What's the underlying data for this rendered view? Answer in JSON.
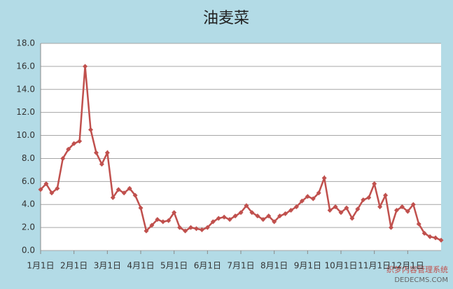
{
  "chart_data": {
    "type": "line",
    "title": "油麦菜",
    "categories": [
      "1月1日",
      null,
      null,
      null,
      null,
      null,
      "2月1日",
      null,
      null,
      null,
      null,
      null,
      "3月1日",
      null,
      null,
      null,
      null,
      null,
      "4月1日",
      null,
      null,
      null,
      null,
      null,
      "5月1日",
      null,
      null,
      null,
      null,
      null,
      "6月1日",
      null,
      null,
      null,
      null,
      null,
      "7月1日",
      null,
      null,
      null,
      null,
      null,
      "8月1日",
      null,
      null,
      null,
      null,
      null,
      "9月1日",
      null,
      null,
      null,
      null,
      null,
      "10月1日",
      null,
      null,
      null,
      null,
      null,
      "11月1日",
      null,
      null,
      null,
      null,
      null,
      "12月1日",
      null,
      null,
      null,
      null,
      null,
      null
    ],
    "values": [
      5.3,
      5.8,
      5.0,
      5.4,
      8.0,
      8.8,
      9.3,
      9.5,
      16.0,
      10.5,
      8.5,
      7.5,
      8.5,
      4.6,
      5.3,
      5.0,
      5.4,
      4.8,
      3.7,
      1.7,
      2.2,
      2.7,
      2.5,
      2.6,
      3.3,
      2.0,
      1.7,
      2.0,
      1.9,
      1.8,
      2.0,
      2.5,
      2.8,
      2.9,
      2.7,
      3.0,
      3.3,
      3.9,
      3.3,
      3.0,
      2.7,
      3.0,
      2.5,
      3.0,
      3.2,
      3.5,
      3.8,
      4.3,
      4.7,
      4.5,
      5.0,
      6.3,
      3.5,
      3.8,
      3.3,
      3.7,
      2.8,
      3.6,
      4.4,
      4.6,
      5.8,
      3.8,
      4.8,
      2.0,
      3.5,
      3.8,
      3.4,
      4.0,
      2.3,
      1.5,
      1.2,
      1.1,
      0.9
    ],
    "color": "#c0504d",
    "ylim": [
      0,
      18
    ],
    "yticks": [
      {
        "value": 0,
        "label": "0.0"
      },
      {
        "value": 2,
        "label": "2.0"
      },
      {
        "value": 4,
        "label": "4.0"
      },
      {
        "value": 6,
        "label": "6.0"
      },
      {
        "value": 8,
        "label": "8.0"
      },
      {
        "value": 10,
        "label": "10.0"
      },
      {
        "value": 12,
        "label": "12.0"
      },
      {
        "value": 14,
        "label": "14.0"
      },
      {
        "value": 16,
        "label": "16.0"
      },
      {
        "value": 18,
        "label": "18.0"
      }
    ],
    "grid": true
  },
  "watermark": {
    "line1": "织梦内容管理系统",
    "line2": "DEDECMS.COM"
  }
}
